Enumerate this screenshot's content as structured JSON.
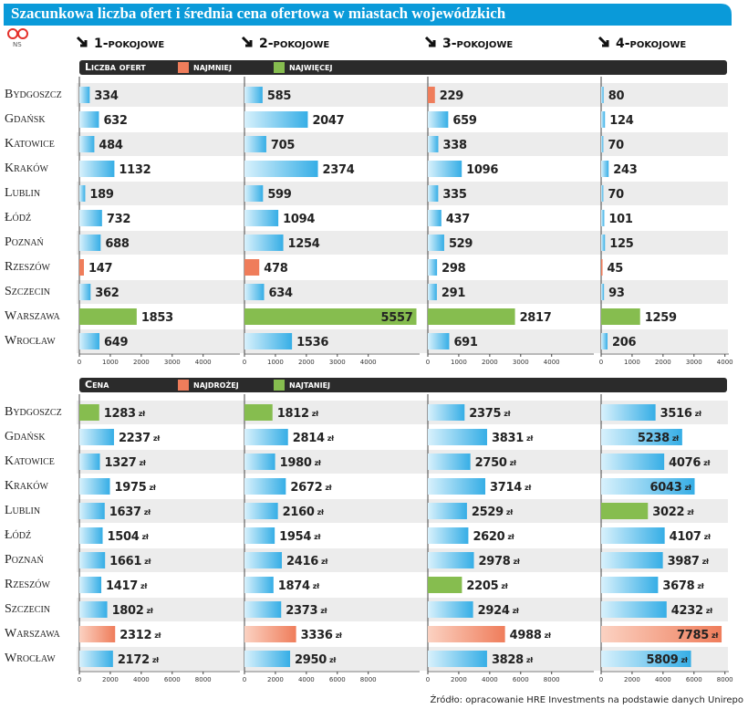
{
  "title": "Szacunkowa liczba ofert i średnia cena ofertowa w miastach wojewódzkich",
  "logo": "NS",
  "columns": [
    "1-pokojowe",
    "2-pokojowe",
    "3-pokojowe",
    "4-pokojowe"
  ],
  "source": "Źródło: opracowanie HRE Investments na podstawie danych Unirepo",
  "chart_data": [
    {
      "type": "bar",
      "orientation": "horizontal",
      "title": "Liczba ofert",
      "categories": [
        "Bydgoszcz",
        "Gdańsk",
        "Katowice",
        "Kraków",
        "Lublin",
        "Łódź",
        "Poznań",
        "Rzeszów",
        "Szczecin",
        "Warszawa",
        "Wrocław"
      ],
      "color": "#4fb8e8",
      "legend": [
        {
          "label": "najmniej",
          "rule": "min",
          "color": "#ef7d5b"
        },
        {
          "label": "najwięcej",
          "rule": "max",
          "color": "#86bd4f"
        }
      ],
      "xlim": [
        0,
        5600
      ],
      "xticks": [
        0,
        1000,
        2000,
        3000,
        4000
      ],
      "series": [
        {
          "values": [
            334,
            632,
            484,
            1132,
            189,
            732,
            688,
            147,
            362,
            1853,
            649
          ]
        },
        {
          "values": [
            585,
            2047,
            705,
            2374,
            599,
            1094,
            1254,
            478,
            634,
            5557,
            1536
          ]
        },
        {
          "values": [
            229,
            659,
            338,
            1096,
            335,
            437,
            529,
            298,
            291,
            2817,
            691
          ]
        },
        {
          "values": [
            80,
            124,
            70,
            243,
            70,
            101,
            125,
            45,
            93,
            1259,
            206
          ]
        }
      ]
    },
    {
      "type": "bar",
      "orientation": "horizontal",
      "title": "Cena",
      "unit": "zł",
      "categories": [
        "Bydgoszcz",
        "Gdańsk",
        "Katowice",
        "Kraków",
        "Lublin",
        "Łódź",
        "Poznań",
        "Rzeszów",
        "Szczecin",
        "Warszawa",
        "Wrocław"
      ],
      "color": "#4fb8e8",
      "legend": [
        {
          "label": "najdrożej",
          "rule": "max",
          "color": "#ef7d5b"
        },
        {
          "label": "najtaniej",
          "rule": "min",
          "color": "#86bd4f"
        }
      ],
      "xlim": [
        0,
        11200
      ],
      "xticks": [
        0,
        2000,
        4000,
        6000,
        8000
      ],
      "series": [
        {
          "values": [
            1283,
            2237,
            1327,
            1975,
            1637,
            1504,
            1661,
            1417,
            1802,
            2312,
            2172
          ]
        },
        {
          "values": [
            1812,
            2814,
            1980,
            2672,
            2160,
            1954,
            2416,
            1874,
            2373,
            3336,
            2950
          ]
        },
        {
          "values": [
            2375,
            3831,
            2750,
            3714,
            2529,
            2620,
            2978,
            2205,
            2924,
            4988,
            3828
          ]
        },
        {
          "values": [
            3516,
            5238,
            4076,
            6043,
            3022,
            4107,
            3987,
            3678,
            4232,
            7785,
            5809
          ]
        }
      ]
    }
  ]
}
